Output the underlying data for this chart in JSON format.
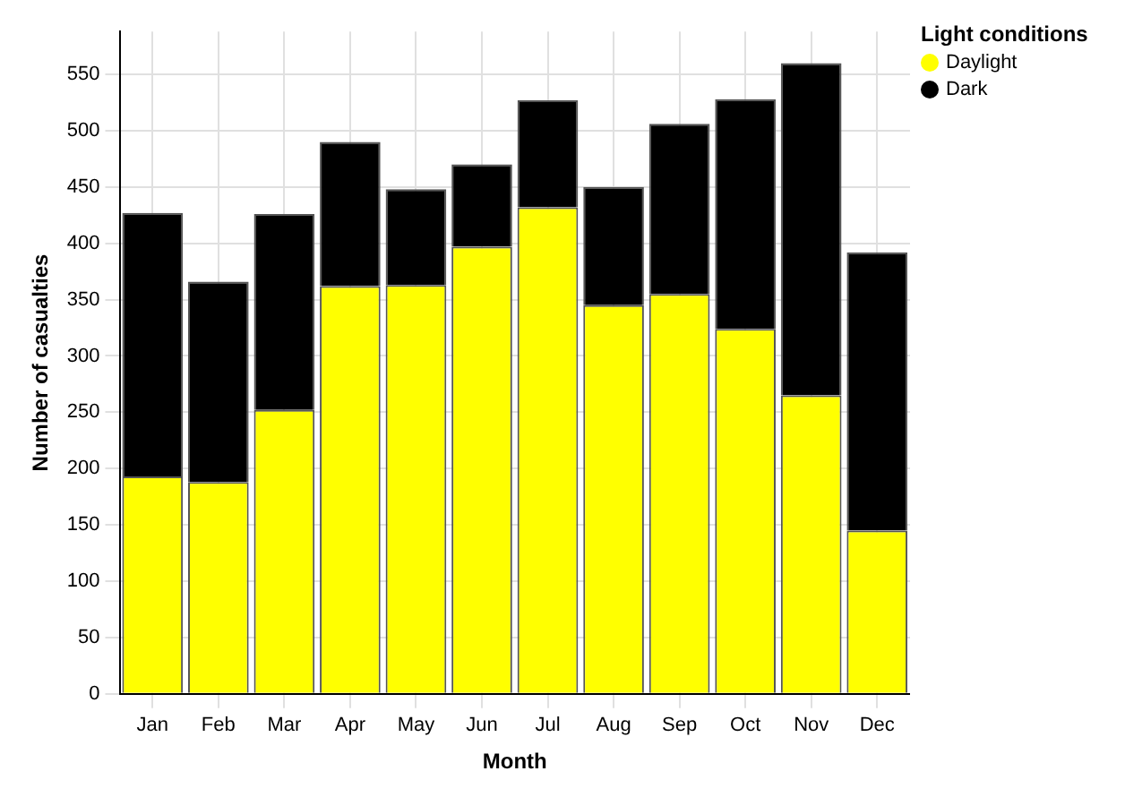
{
  "chart_data": {
    "type": "bar",
    "stacked": true,
    "xlabel": "Month",
    "ylabel": "Number of casualties",
    "legend_title": "Light conditions",
    "legend": "top right",
    "grid": true,
    "categories": [
      "Jan",
      "Feb",
      "Mar",
      "Apr",
      "May",
      "Jun",
      "Jul",
      "Aug",
      "Sep",
      "Oct",
      "Nov",
      "Dec"
    ],
    "series": [
      {
        "name": "Daylight",
        "color": "#ffff00",
        "values": [
          193,
          188,
          252,
          362,
          363,
          397,
          432,
          345,
          355,
          324,
          265,
          145
        ]
      },
      {
        "name": "Dark",
        "color": "#000000",
        "values": [
          234,
          178,
          174,
          128,
          85,
          73,
          95,
          105,
          151,
          204,
          295,
          247
        ]
      }
    ],
    "ylim": [
      0,
      588
    ],
    "yticks": [
      0,
      50,
      100,
      150,
      200,
      250,
      300,
      350,
      400,
      450,
      500,
      550
    ]
  }
}
